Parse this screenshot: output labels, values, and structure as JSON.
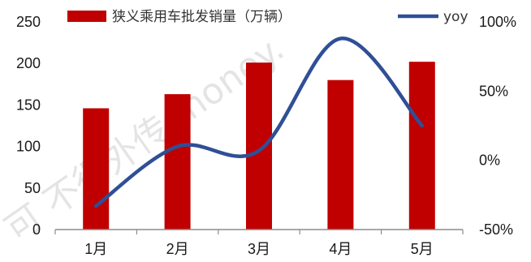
{
  "chart_data": {
    "type": "bar+line",
    "categories": [
      "1月",
      "2月",
      "3月",
      "4月",
      "5月"
    ],
    "series": [
      {
        "name": "狭义乘用车批发销量（万辆）",
        "type": "bar",
        "axis": "left",
        "values": [
          146,
          163,
          201,
          180,
          202
        ],
        "color": "#C00000"
      },
      {
        "name": "yoy",
        "type": "line",
        "axis": "right",
        "values": [
          -0.33,
          0.1,
          0.07,
          0.88,
          0.25
        ],
        "color": "#2F4F96"
      }
    ],
    "y_left": {
      "range": [
        0,
        250
      ],
      "ticks": [
        "0",
        "50",
        "100",
        "150",
        "200",
        "250"
      ]
    },
    "y_right": {
      "range": [
        -0.5,
        1.0
      ],
      "ticks": [
        "-50%",
        "0%",
        "50%",
        "100%"
      ]
    },
    "legend_position": "top",
    "grid": false
  },
  "watermark": "可 不得外传 money.",
  "colors": {
    "bar": "#C00000",
    "line": "#2F4F96",
    "axis": "#8c8c8c",
    "text": "#1a1a1a"
  }
}
